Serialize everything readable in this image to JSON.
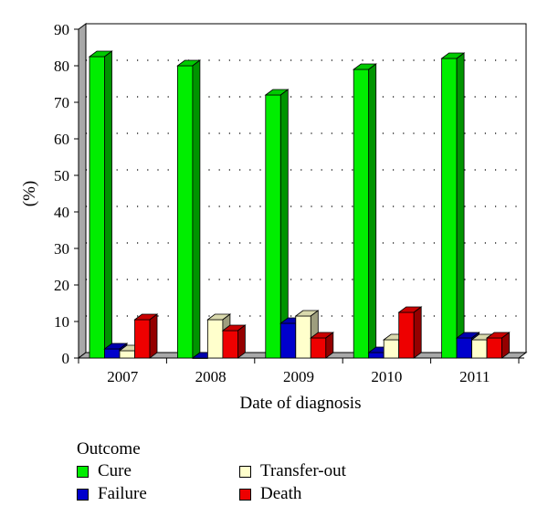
{
  "chart_data": {
    "type": "bar",
    "style": "3d-clustered",
    "categories": [
      "2007",
      "2008",
      "2009",
      "2010",
      "2011"
    ],
    "series": [
      {
        "name": "Cure",
        "color": "#00ee00",
        "values": [
          82.5,
          80,
          72,
          79,
          82
        ]
      },
      {
        "name": "Failure",
        "color": "#0000cc",
        "values": [
          2.5,
          0,
          9.5,
          1.5,
          5.5
        ]
      },
      {
        "name": "Transfer-out",
        "color": "#ffffcc",
        "values": [
          2,
          10.5,
          11.5,
          5,
          5
        ]
      },
      {
        "name": "Death",
        "color": "#ee0000",
        "values": [
          10.5,
          7.5,
          5.5,
          12.5,
          5.5
        ]
      }
    ],
    "xlabel": "Date of diagnosis",
    "ylabel": "(%)",
    "ylim": [
      0,
      90
    ],
    "yticks": [
      0,
      10,
      20,
      30,
      40,
      50,
      60,
      70,
      80,
      90
    ],
    "grid": "dotted-horizontal",
    "legend": {
      "title": "Outcome",
      "placement": "bottom"
    }
  }
}
